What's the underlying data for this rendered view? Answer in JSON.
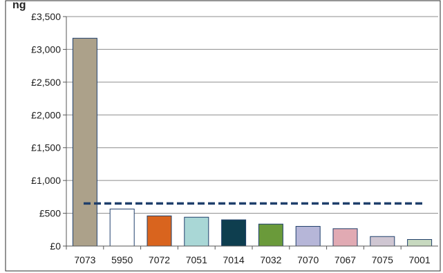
{
  "chart_data": {
    "type": "bar",
    "title_fragment": "ng",
    "categories": [
      "7073",
      "5950",
      "7072",
      "7051",
      "7014",
      "7032",
      "7070",
      "7067",
      "7075",
      "7001"
    ],
    "values": [
      3170,
      565,
      460,
      440,
      400,
      335,
      300,
      265,
      145,
      100
    ],
    "colors": [
      "#aca18a",
      "#ffffff",
      "#d9641e",
      "#a9d7d6",
      "#0e3e4f",
      "#6a9a3a",
      "#b6b6d8",
      "#e1aab3",
      "#cfc6d2",
      "#c7d9bf"
    ],
    "ylim": [
      0,
      3500
    ],
    "y_ticks": [
      0,
      500,
      1000,
      1500,
      2000,
      2500,
      3000,
      3500
    ],
    "y_tick_labels": [
      "£0",
      "£500",
      "£1,000",
      "£1,500",
      "£2,000",
      "£2,500",
      "£3,000",
      "£3,500"
    ],
    "reference_line": {
      "value": 650,
      "style": "dashed",
      "color": "#1f3f6b"
    },
    "grid": true,
    "legend": "none"
  }
}
